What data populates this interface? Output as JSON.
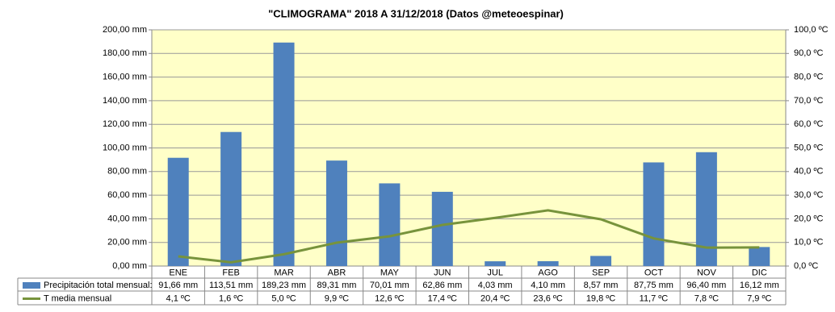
{
  "chart_data": {
    "type": "bar",
    "title": "\"CLIMOGRAMA\"  2018 A 31/12/2018  (Datos @meteoespinar)",
    "categories": [
      "ENE",
      "FEB",
      "MAR",
      "ABR",
      "MAY",
      "JUN",
      "JUL",
      "AGO",
      "SEP",
      "OCT",
      "NOV",
      "DIC"
    ],
    "series": [
      {
        "name": "Precipitación total mensual:",
        "color": "#4f81bd",
        "type": "bar",
        "values": [
          91.66,
          113.51,
          189.23,
          89.31,
          70.01,
          62.86,
          4.03,
          4.1,
          8.57,
          87.75,
          96.4,
          16.12
        ],
        "value_labels": [
          "91,66 mm",
          "113,51 mm",
          "189,23 mm",
          "89,31 mm",
          "70,01 mm",
          "62,86 mm",
          "4,03 mm",
          "4,10 mm",
          "8,57 mm",
          "87,75 mm",
          "96,40 mm",
          "16,12 mm"
        ]
      },
      {
        "name": "T media mensual",
        "color": "#77933c",
        "type": "line",
        "axis": "y2",
        "values": [
          4.1,
          1.6,
          5.0,
          9.9,
          12.6,
          17.4,
          20.4,
          23.6,
          19.8,
          11.7,
          7.8,
          7.9
        ],
        "value_labels": [
          "4,1 ºC",
          "1,6 ºC",
          "5,0 ºC",
          "9,9 ºC",
          "12,6 ºC",
          "17,4 ºC",
          "20,4 ºC",
          "23,6 ºC",
          "19,8 ºC",
          "11,7 ºC",
          "7,8 ºC",
          "7,9 ºC"
        ]
      }
    ],
    "ylim": [
      0,
      200
    ],
    "yticks": [
      {
        "value": 0,
        "label": "0,00 mm"
      },
      {
        "value": 20,
        "label": "20,00 mm"
      },
      {
        "value": 40,
        "label": "40,00 mm"
      },
      {
        "value": 60,
        "label": "60,00 mm"
      },
      {
        "value": 80,
        "label": "80,00 mm"
      },
      {
        "value": 100,
        "label": "100,00 mm"
      },
      {
        "value": 120,
        "label": "120,00 mm"
      },
      {
        "value": 140,
        "label": "140,00 mm"
      },
      {
        "value": 160,
        "label": "160,00 mm"
      },
      {
        "value": 180,
        "label": "180,00 mm"
      },
      {
        "value": 200,
        "label": "200,00 mm"
      }
    ],
    "y2lim": [
      0,
      100
    ],
    "y2ticks": [
      {
        "value": 0,
        "label": "0,0 ºC"
      },
      {
        "value": 10,
        "label": "10,0 ºC"
      },
      {
        "value": 20,
        "label": "20,0 ºC"
      },
      {
        "value": 30,
        "label": "30,0 ºC"
      },
      {
        "value": 40,
        "label": "40,0 ºC"
      },
      {
        "value": 50,
        "label": "50,0 ºC"
      },
      {
        "value": 60,
        "label": "60,0 ºC"
      },
      {
        "value": 70,
        "label": "70,0 ºC"
      },
      {
        "value": 80,
        "label": "80,0 ºC"
      },
      {
        "value": 90,
        "label": "90,0 ºC"
      },
      {
        "value": 100,
        "label": "100,0 ºC"
      }
    ],
    "grid": true,
    "plot_background": "#ffffc8"
  }
}
